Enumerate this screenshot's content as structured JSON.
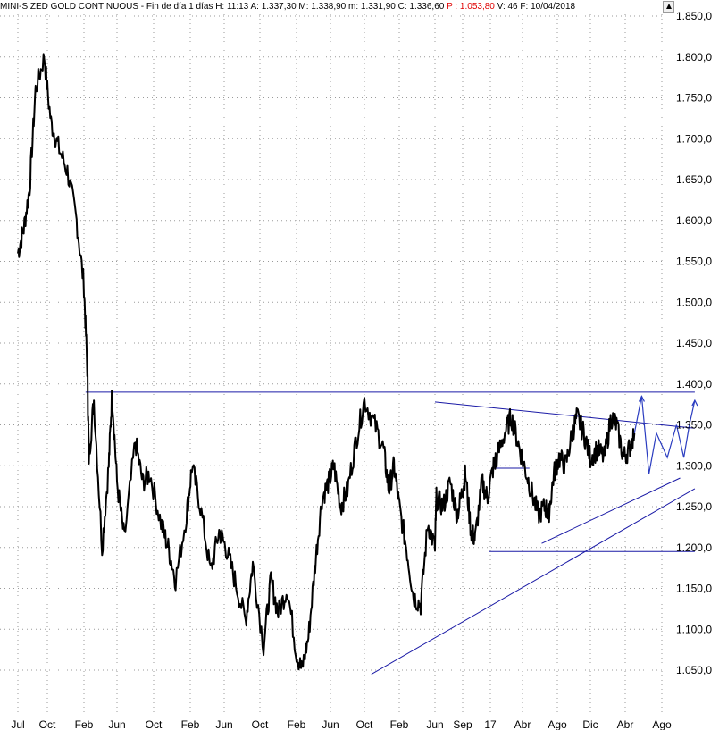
{
  "header": {
    "instrument": "MINI-SIZED GOLD CONTINUOUS",
    "period": "Fin de día 1 días",
    "h": "H: 11:13",
    "a": "A: 1.337,30",
    "m": "M: 1.338,90",
    "min": "m: 1.331,90",
    "c": "C: 1.336,60",
    "p": "P : 1.053,80",
    "v": "V: 46",
    "f": "F: 10/04/2018"
  },
  "colors": {
    "price": "#000000",
    "trendline": "#1a1aa6",
    "projection": "#2a3cc0",
    "grid": "#9a9a9a",
    "negative_value": "#e00000"
  },
  "chart_data": {
    "type": "line",
    "title": "",
    "xlabel": "",
    "ylabel": "",
    "ylim": [
      1025,
      1855
    ],
    "y_ticks": [
      "1.850,0",
      "1.800,0",
      "1.750,0",
      "1.700,0",
      "1.650,0",
      "1.600,0",
      "1.550,0",
      "1.500,0",
      "1.450,0",
      "1.400,0",
      "1.350,0",
      "1.300,0",
      "1.250,0",
      "1.200,0",
      "1.150,0",
      "1.100,0",
      "1.050,0"
    ],
    "y_tick_values": [
      1850,
      1800,
      1750,
      1700,
      1650,
      1600,
      1550,
      1500,
      1450,
      1400,
      1350,
      1300,
      1250,
      1200,
      1150,
      1100,
      1050
    ],
    "x_ticks": [
      "Jul",
      "Oct",
      "Feb",
      "Jun",
      "Oct",
      "Feb",
      "Jun",
      "Oct",
      "Feb",
      "Jun",
      "Oct",
      "Feb",
      "Jun",
      "Sep",
      "17",
      "Abr",
      "Ago",
      "Dic",
      "Abr",
      "Ago"
    ],
    "x_tick_index": [
      0,
      1,
      2,
      3,
      4,
      5,
      6,
      7,
      8,
      9,
      10,
      11,
      12,
      13,
      14,
      15,
      16,
      17,
      18,
      19
    ],
    "grid": true,
    "series": [
      {
        "style": "price",
        "x": [
          0,
          0.2,
          0.4,
          0.6,
          0.9,
          1.1,
          1.3,
          1.55,
          1.8,
          2.0,
          2.1,
          2.15,
          2.3,
          2.55,
          2.75,
          2.85,
          3.0,
          3.2,
          3.5,
          3.7,
          3.9,
          4.2,
          4.4,
          4.6,
          4.9,
          5.05,
          5.3,
          5.6,
          5.85,
          6.05,
          6.3,
          6.6,
          6.8,
          7.1,
          7.3,
          7.5,
          7.75,
          8.0,
          8.15,
          8.35,
          8.55,
          8.75,
          8.95,
          9.1,
          9.3,
          9.5,
          9.75,
          10.0,
          10.3,
          10.55,
          10.7,
          10.85,
          11.0,
          11.2,
          11.4,
          11.6,
          11.8,
          12.0,
          12.05,
          12.3,
          12.55,
          12.8,
          13.0,
          13.1,
          13.3,
          13.45,
          13.7,
          13.9,
          14.1,
          14.2,
          14.45,
          14.65,
          14.85,
          15.05,
          15.25,
          15.45,
          15.65,
          15.75,
          15.9,
          16.05,
          16.25,
          16.45,
          16.6,
          16.8,
          17.0,
          17.2,
          17.4,
          17.6,
          17.75,
          17.95,
          18.1,
          18.25
        ],
        "y": [
          1560,
          1590,
          1640,
          1760,
          1800,
          1720,
          1690,
          1660,
          1600,
          1520,
          1420,
          1310,
          1380,
          1200,
          1300,
          1390,
          1280,
          1210,
          1330,
          1280,
          1290,
          1230,
          1200,
          1160,
          1240,
          1300,
          1250,
          1170,
          1220,
          1200,
          1160,
          1110,
          1180,
          1080,
          1160,
          1120,
          1150,
          1070,
          1050,
          1090,
          1180,
          1260,
          1280,
          1300,
          1250,
          1270,
          1330,
          1380,
          1350,
          1320,
          1270,
          1300,
          1250,
          1200,
          1140,
          1130,
          1230,
          1200,
          1260,
          1250,
          1280,
          1240,
          1270,
          1290,
          1220,
          1210,
          1280,
          1260,
          1300,
          1310,
          1340,
          1360,
          1330,
          1300,
          1270,
          1240,
          1250,
          1240,
          1290,
          1310,
          1300,
          1340,
          1360,
          1340,
          1310,
          1320,
          1310,
          1360,
          1350,
          1310,
          1320,
          1340
        ]
      },
      {
        "style": "projection",
        "x": [
          18.25,
          18.45,
          18.65,
          18.85,
          18.95,
          19.05,
          19.15,
          19.4,
          19.6,
          19.75,
          19.9
        ],
        "y": [
          1340,
          1385,
          1290,
          1340,
          1330,
          1320,
          1310,
          1350,
          1310,
          1350,
          1380
        ]
      }
    ],
    "trendlines": [
      {
        "name": "",
        "x": [
          2.05,
          10.0,
          19.9
        ],
        "y": [
          1390,
          1390,
          1390
        ]
      },
      {
        "name": "",
        "x": [
          12.0,
          19.9
        ],
        "y": [
          1378,
          1346
        ]
      },
      {
        "name": "",
        "x": [
          10.2,
          19.9
        ],
        "y": [
          1045,
          1272
        ]
      },
      {
        "name": "",
        "x": [
          15.55,
          19.5
        ],
        "y": [
          1205,
          1285
        ]
      },
      {
        "name": "",
        "x": [
          13.95,
          19.9
        ],
        "y": [
          1195,
          1195
        ]
      },
      {
        "name": "",
        "x": [
          14.1,
          15.2
        ],
        "y": [
          1297,
          1297
        ]
      }
    ]
  }
}
